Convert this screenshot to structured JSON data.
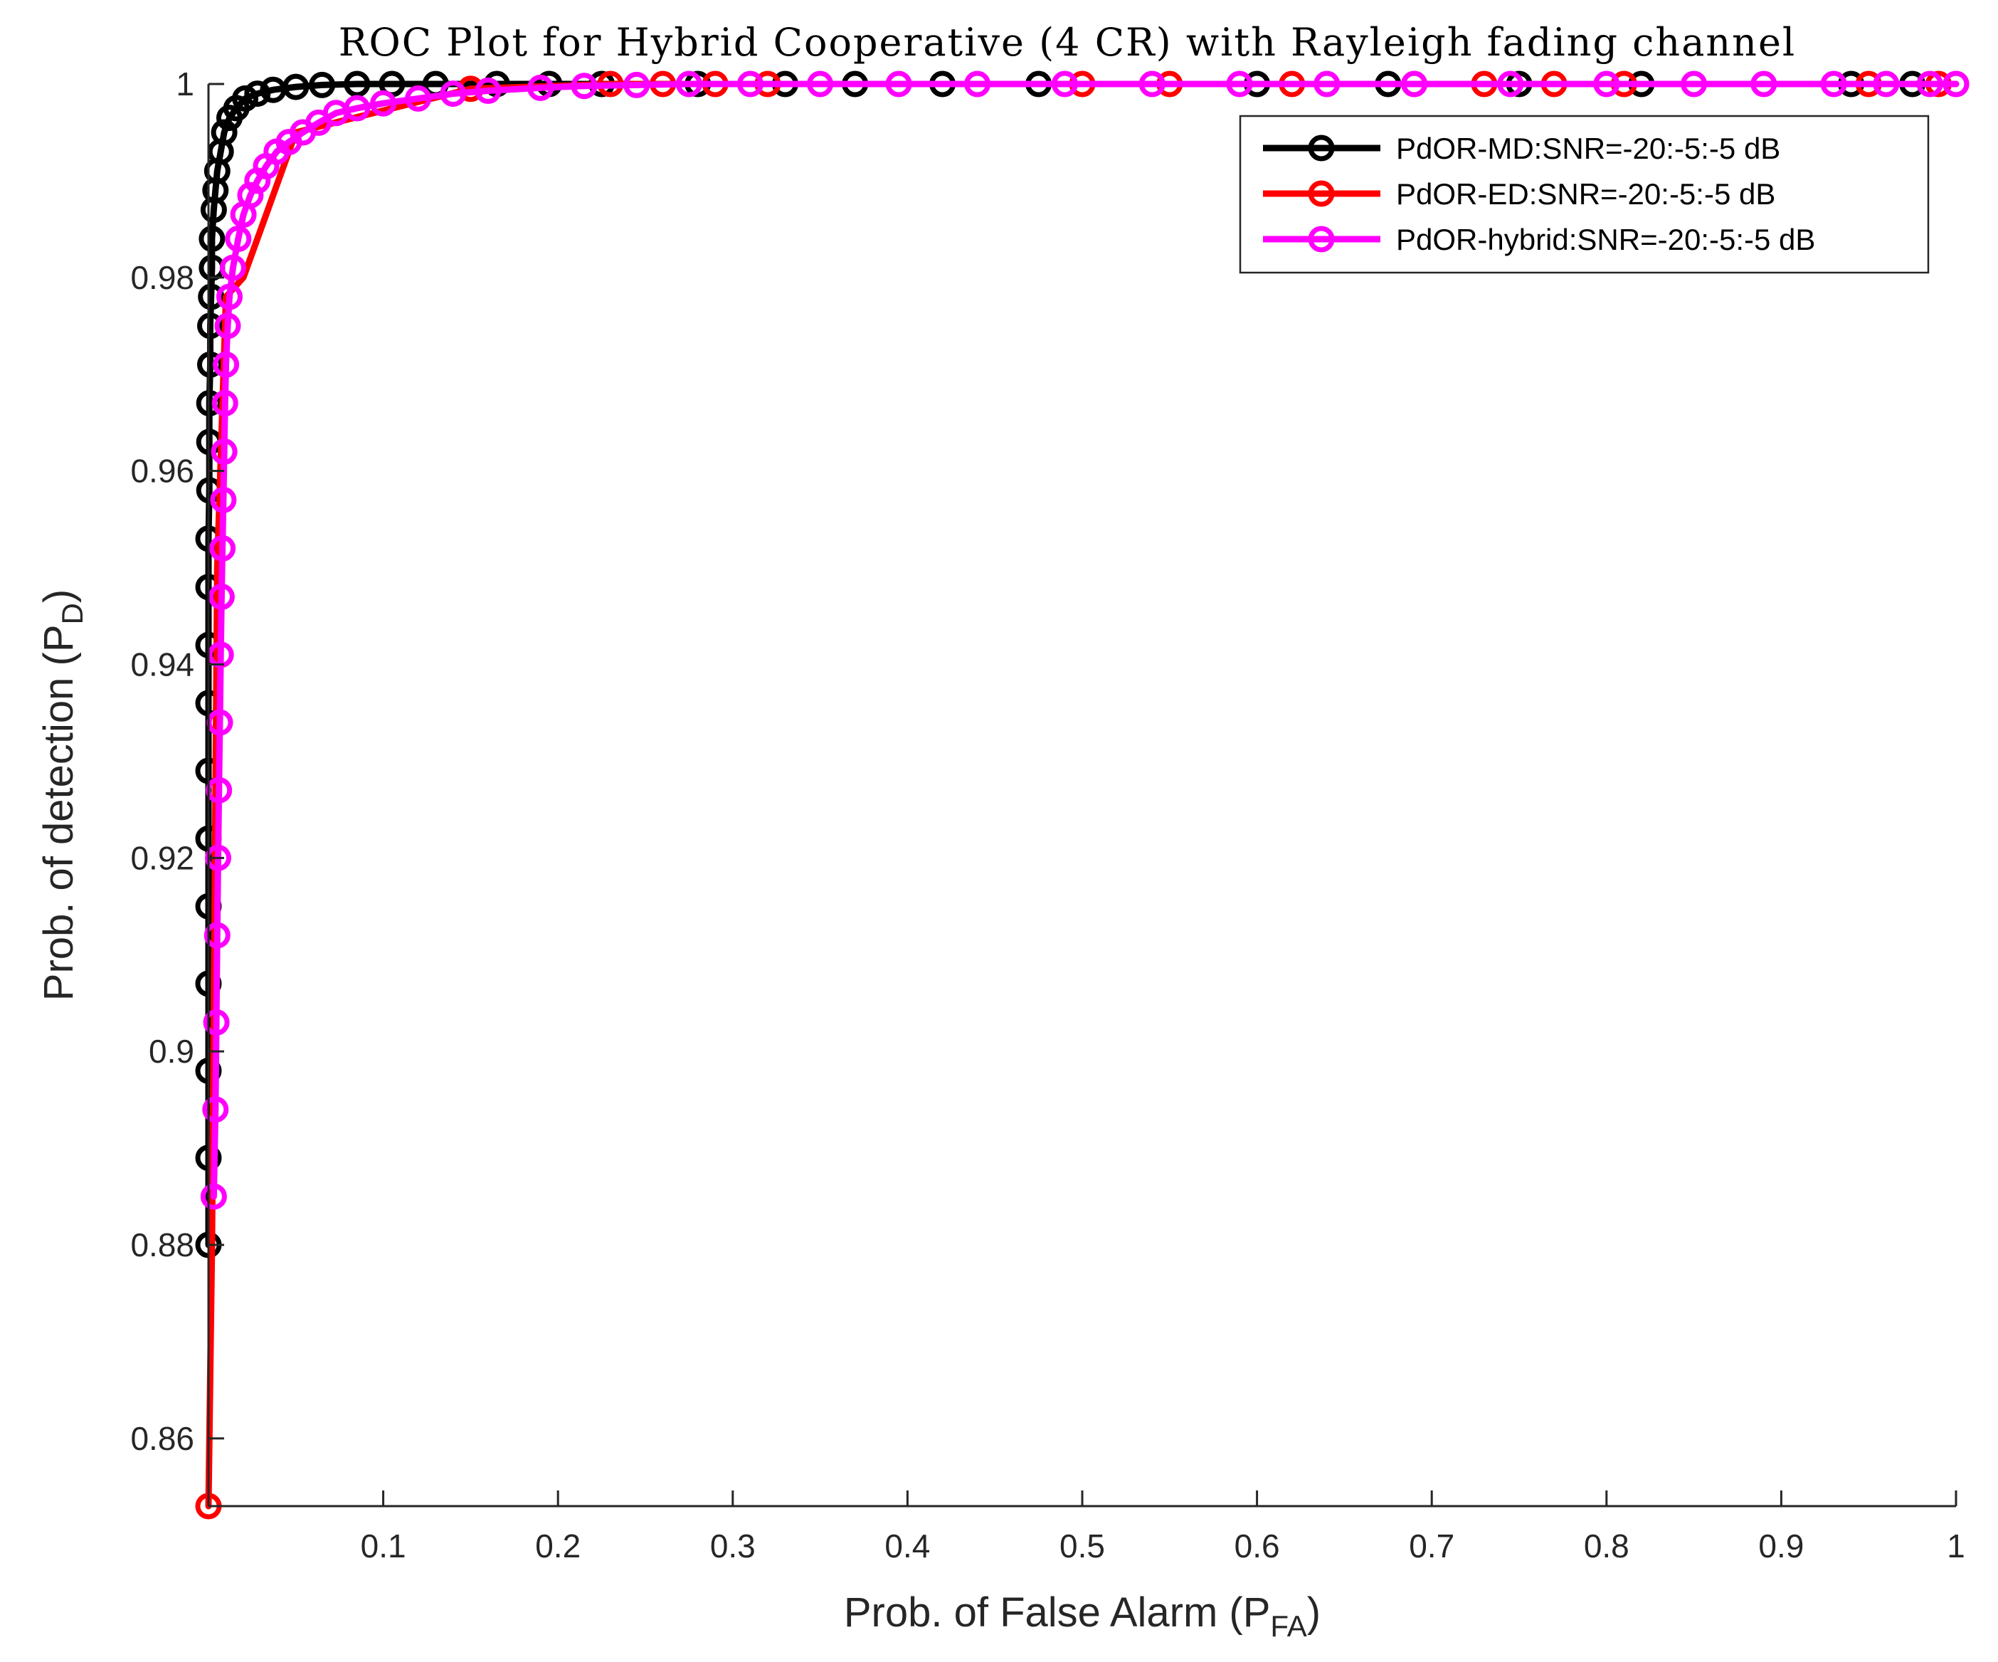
{
  "chart_data": {
    "type": "line",
    "title": "ROC Plot for Hybrid Cooperative (4 CR) with Rayleigh fading channel",
    "xlabel": {
      "main": "Prob. of False Alarm (P",
      "sub": "FA",
      "close": ")"
    },
    "ylabel": {
      "main": "Prob. of detection (P",
      "sub": "D",
      "close": ")"
    },
    "xlim": [
      0,
      1
    ],
    "ylim": [
      0.853,
      1
    ],
    "x_ticks": [
      0.1,
      0.2,
      0.3,
      0.4,
      0.5,
      0.6,
      0.7,
      0.8,
      0.9,
      1
    ],
    "x_tick_labels": [
      "0.1",
      "0.2",
      "0.3",
      "0.4",
      "0.5",
      "0.6",
      "0.7",
      "0.8",
      "0.9",
      "1"
    ],
    "y_ticks": [
      0.86,
      0.88,
      0.9,
      0.92,
      0.94,
      0.96,
      0.98,
      1
    ],
    "y_tick_labels": [
      "0.86",
      "0.88",
      "0.9",
      "0.92",
      "0.94",
      "0.96",
      "0.98",
      "1"
    ],
    "grid": false,
    "legend_position": "top-right",
    "series": [
      {
        "name": "PdOR-MD:SNR=-20:-5:-5 dB",
        "color": "#000000",
        "marker": "circle",
        "x": [
          0.0,
          0.0,
          0.0,
          0.0,
          0.0,
          0.0,
          0.0,
          0.0,
          0.0,
          0.0,
          0.0,
          0.0005,
          0.0005,
          0.0005,
          0.001,
          0.001,
          0.0015,
          0.002,
          0.002,
          0.003,
          0.004,
          0.005,
          0.007,
          0.009,
          0.012,
          0.016,
          0.021,
          0.028,
          0.037,
          0.05,
          0.065,
          0.085,
          0.105,
          0.13,
          0.165,
          0.195,
          0.225,
          0.28,
          0.33,
          0.37,
          0.42,
          0.475,
          0.6,
          0.675,
          0.75,
          0.82,
          0.94,
          0.975
        ],
        "y": [
          0.88,
          0.889,
          0.898,
          0.907,
          0.915,
          0.922,
          0.929,
          0.936,
          0.942,
          0.948,
          0.953,
          0.958,
          0.963,
          0.967,
          0.971,
          0.975,
          0.978,
          0.981,
          0.984,
          0.987,
          0.989,
          0.991,
          0.993,
          0.995,
          0.9965,
          0.9975,
          0.9985,
          0.999,
          0.9994,
          0.9997,
          0.9999,
          1.0,
          1.0,
          1.0,
          1.0,
          1.0,
          1.0,
          1.0,
          1.0,
          1.0,
          1.0,
          1.0,
          1.0,
          1.0,
          1.0,
          1.0,
          1.0,
          1.0
        ]
      },
      {
        "name": "PdOR-ED:SNR=-20:-5:-5 dB",
        "color": "#ff0000",
        "marker": "circle",
        "x": [
          0.0,
          0.002,
          0.005,
          0.01,
          0.02,
          0.05,
          0.15,
          0.23,
          0.26,
          0.29,
          0.32,
          0.5,
          0.55,
          0.62,
          0.69,
          0.73,
          0.77,
          0.81,
          0.95,
          0.99,
          1.0
        ],
        "y": [
          0.853,
          0.88,
          0.95,
          0.978,
          0.98,
          0.995,
          0.9995,
          1.0,
          1.0,
          1.0,
          1.0,
          1.0,
          1.0,
          1.0,
          1.0,
          1.0,
          1.0,
          1.0,
          1.0,
          1.0,
          1.0
        ],
        "marker_indices": [
          0,
          6,
          7,
          8,
          9,
          10,
          11,
          12,
          13,
          14,
          15,
          16,
          17,
          18,
          19,
          20
        ]
      },
      {
        "name": "PdOR-hybrid:SNR=-20:-5:-5 dB",
        "color": "#ff00ff",
        "marker": "circle",
        "x": [
          0.003,
          0.004,
          0.0045,
          0.005,
          0.0055,
          0.006,
          0.0065,
          0.007,
          0.0075,
          0.008,
          0.0085,
          0.009,
          0.0095,
          0.01,
          0.011,
          0.012,
          0.014,
          0.017,
          0.02,
          0.024,
          0.028,
          0.033,
          0.039,
          0.046,
          0.054,
          0.063,
          0.073,
          0.085,
          0.1,
          0.12,
          0.14,
          0.16,
          0.19,
          0.215,
          0.245,
          0.275,
          0.31,
          0.35,
          0.395,
          0.44,
          0.49,
          0.54,
          0.59,
          0.64,
          0.69,
          0.745,
          0.8,
          0.85,
          0.89,
          0.93,
          0.96,
          0.985,
          1.0
        ],
        "y": [
          0.885,
          0.894,
          0.903,
          0.912,
          0.92,
          0.927,
          0.934,
          0.941,
          0.947,
          0.952,
          0.957,
          0.962,
          0.967,
          0.971,
          0.975,
          0.978,
          0.981,
          0.984,
          0.9865,
          0.9885,
          0.99,
          0.9915,
          0.993,
          0.994,
          0.995,
          0.996,
          0.997,
          0.9975,
          0.998,
          0.9985,
          0.999,
          0.9993,
          0.9996,
          0.9998,
          0.9999,
          1.0,
          1.0,
          1.0,
          1.0,
          1.0,
          1.0,
          1.0,
          1.0,
          1.0,
          1.0,
          1.0,
          1.0,
          1.0,
          1.0,
          1.0,
          1.0,
          1.0,
          1.0
        ]
      }
    ]
  }
}
